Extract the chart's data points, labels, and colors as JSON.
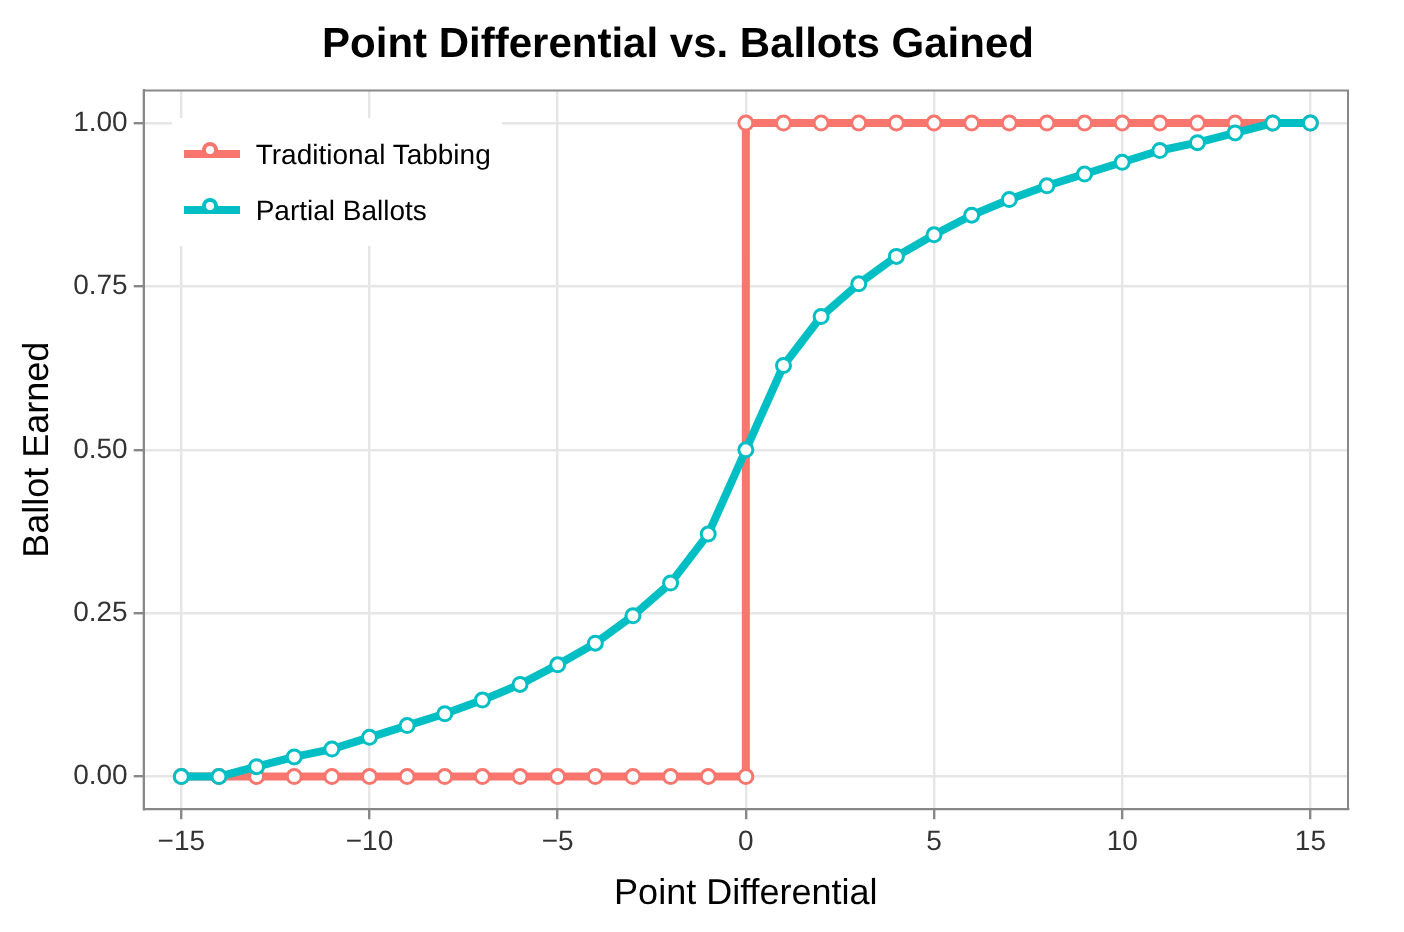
{
  "chart_data": {
    "type": "line",
    "title": "Point Differential vs. Ballots Gained",
    "xlabel": "Point Differential",
    "ylabel": "Ballot Earned",
    "series": [
      {
        "name": "Traditional Tabbing",
        "color": "#f8766d",
        "x": [
          -15,
          -14,
          -13,
          -12,
          -11,
          -10,
          -9,
          -8,
          -7,
          -6,
          -5,
          -4,
          -3,
          -2,
          -1,
          0,
          0,
          1,
          2,
          3,
          4,
          5,
          6,
          7,
          8,
          9,
          10,
          11,
          12,
          13,
          14,
          15
        ],
        "values": [
          0,
          0,
          0,
          0,
          0,
          0,
          0,
          0,
          0,
          0,
          0,
          0,
          0,
          0,
          0,
          0,
          1,
          1,
          1,
          1,
          1,
          1,
          1,
          1,
          1,
          1,
          1,
          1,
          1,
          1,
          1,
          1
        ]
      },
      {
        "name": "Partial Ballots",
        "color": "#00bfc4",
        "x": [
          -15,
          -14,
          -13,
          -12,
          -11,
          -10,
          -9,
          -8,
          -7,
          -6,
          -5,
          -4,
          -3,
          -2,
          -1,
          0,
          1,
          2,
          3,
          4,
          5,
          6,
          7,
          8,
          9,
          10,
          11,
          12,
          13,
          14,
          15
        ],
        "values": [
          0,
          0,
          0.015,
          0.03,
          0.042,
          0.06,
          0.078,
          0.096,
          0.117,
          0.141,
          0.171,
          0.204,
          0.246,
          0.296,
          0.371,
          0.5,
          0.629,
          0.704,
          0.754,
          0.796,
          0.829,
          0.859,
          0.883,
          0.904,
          0.922,
          0.94,
          0.958,
          0.97,
          0.985,
          1,
          1
        ]
      }
    ],
    "xlim": [
      -16,
      16
    ],
    "xticks": [
      {
        "value": -15,
        "label": "−15"
      },
      {
        "value": -10,
        "label": "−10"
      },
      {
        "value": -5,
        "label": "−5"
      },
      0,
      5,
      10,
      15
    ],
    "ylim": [
      -0.05,
      1.05
    ],
    "yticks": [
      {
        "value": 0,
        "label": "0.00"
      },
      {
        "value": 0.25,
        "label": "0.25"
      },
      {
        "value": 0.5,
        "label": "0.50"
      },
      {
        "value": 0.75,
        "label": "0.75"
      },
      {
        "value": 1,
        "label": "1.00"
      }
    ],
    "grid": true,
    "legend": "top left",
    "marker": "circle",
    "line_style": "solid"
  }
}
